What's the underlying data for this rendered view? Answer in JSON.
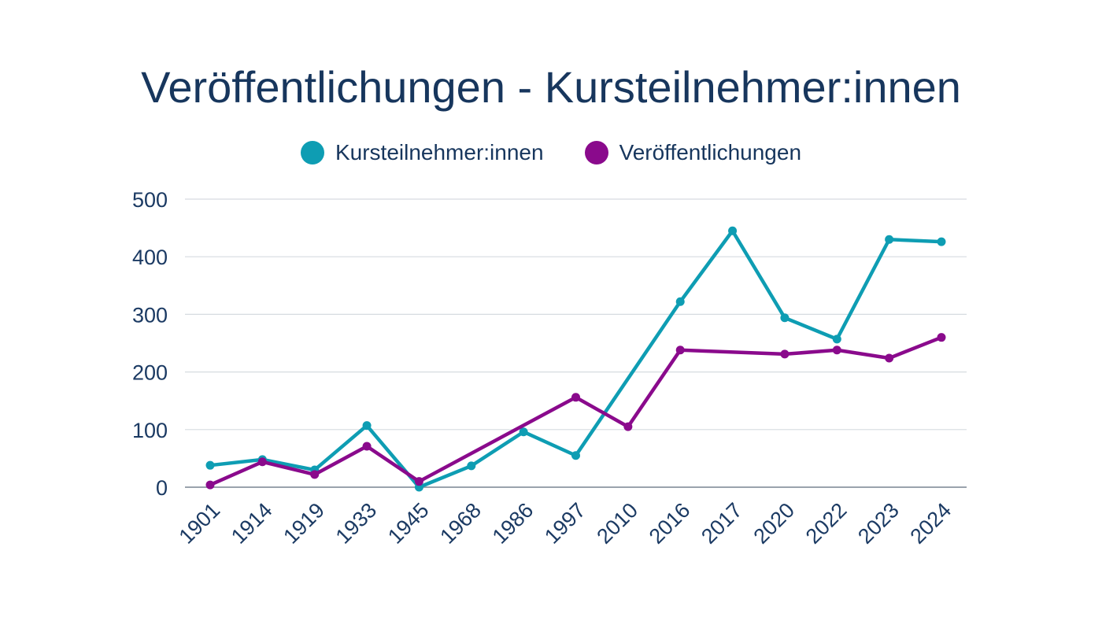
{
  "chart_data": {
    "type": "line",
    "title": "Veröffentlichungen - Kursteilnehmer:innen",
    "xlabel": "",
    "ylabel": "",
    "categories": [
      "1901",
      "1914",
      "1919",
      "1933",
      "1945",
      "1968",
      "1986",
      "1997",
      "2010",
      "2016",
      "2017",
      "2020",
      "2022",
      "2023",
      "2024"
    ],
    "ylim": [
      0,
      500
    ],
    "yticks": [
      0,
      100,
      200,
      300,
      400,
      500
    ],
    "grid": true,
    "legend": "top",
    "series": [
      {
        "name": "Kursteilnehmer:innen",
        "color": "#0e9db3",
        "values": [
          38,
          48,
          30,
          107,
          0,
          37,
          96,
          55,
          null,
          322,
          445,
          294,
          257,
          430,
          426
        ]
      },
      {
        "name": "Veröffentlichungen",
        "color": "#8a0a8c",
        "values": [
          4,
          44,
          22,
          71,
          10,
          null,
          null,
          156,
          105,
          238,
          null,
          231,
          238,
          224,
          260
        ]
      }
    ]
  }
}
